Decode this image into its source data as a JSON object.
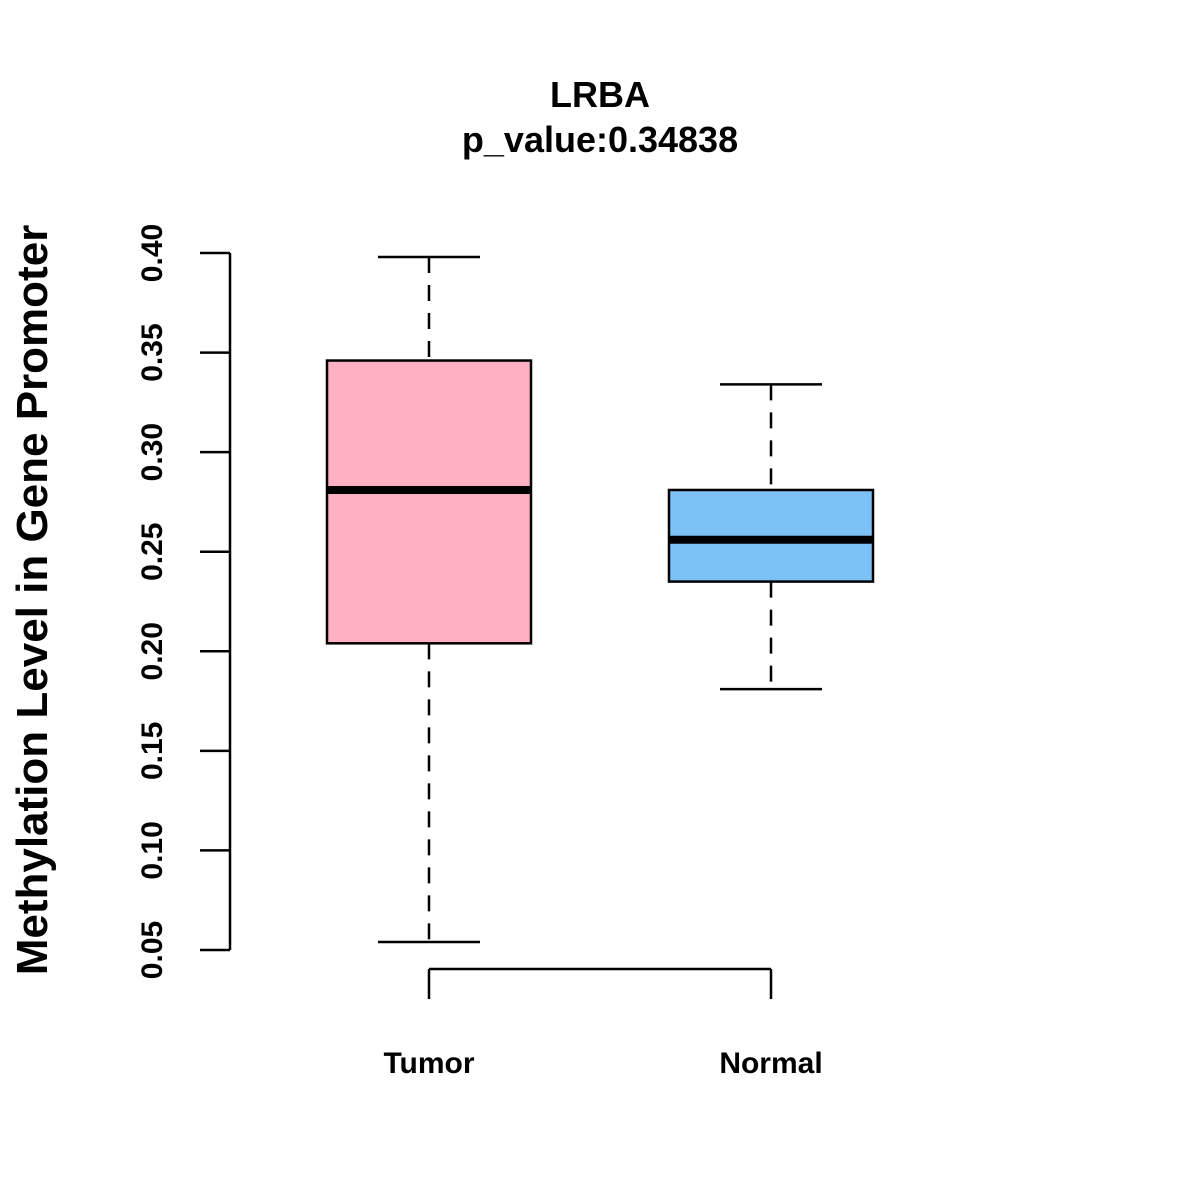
{
  "chart_data": {
    "type": "boxplot",
    "title": "LRBA",
    "subtitle": "p_value:0.34838",
    "ylabel": "Methylation Level in Gene Promoter",
    "xlabel": "",
    "ylim": [
      0.05,
      0.4
    ],
    "yticks": [
      0.05,
      0.1,
      0.15,
      0.2,
      0.25,
      0.3,
      0.35,
      0.4
    ],
    "ytick_labels": [
      "0.05",
      "0.10",
      "0.15",
      "0.20",
      "0.25",
      "0.30",
      "0.35",
      "0.40"
    ],
    "grid": false,
    "series": [
      {
        "name": "Tumor",
        "color": "#FFB0C2",
        "whisker_low": 0.054,
        "q1": 0.204,
        "median": 0.281,
        "q3": 0.346,
        "whisker_high": 0.398
      },
      {
        "name": "Normal",
        "color": "#7CC2F7",
        "whisker_low": 0.181,
        "q1": 0.235,
        "median": 0.256,
        "q3": 0.281,
        "whisker_high": 0.334
      }
    ]
  }
}
